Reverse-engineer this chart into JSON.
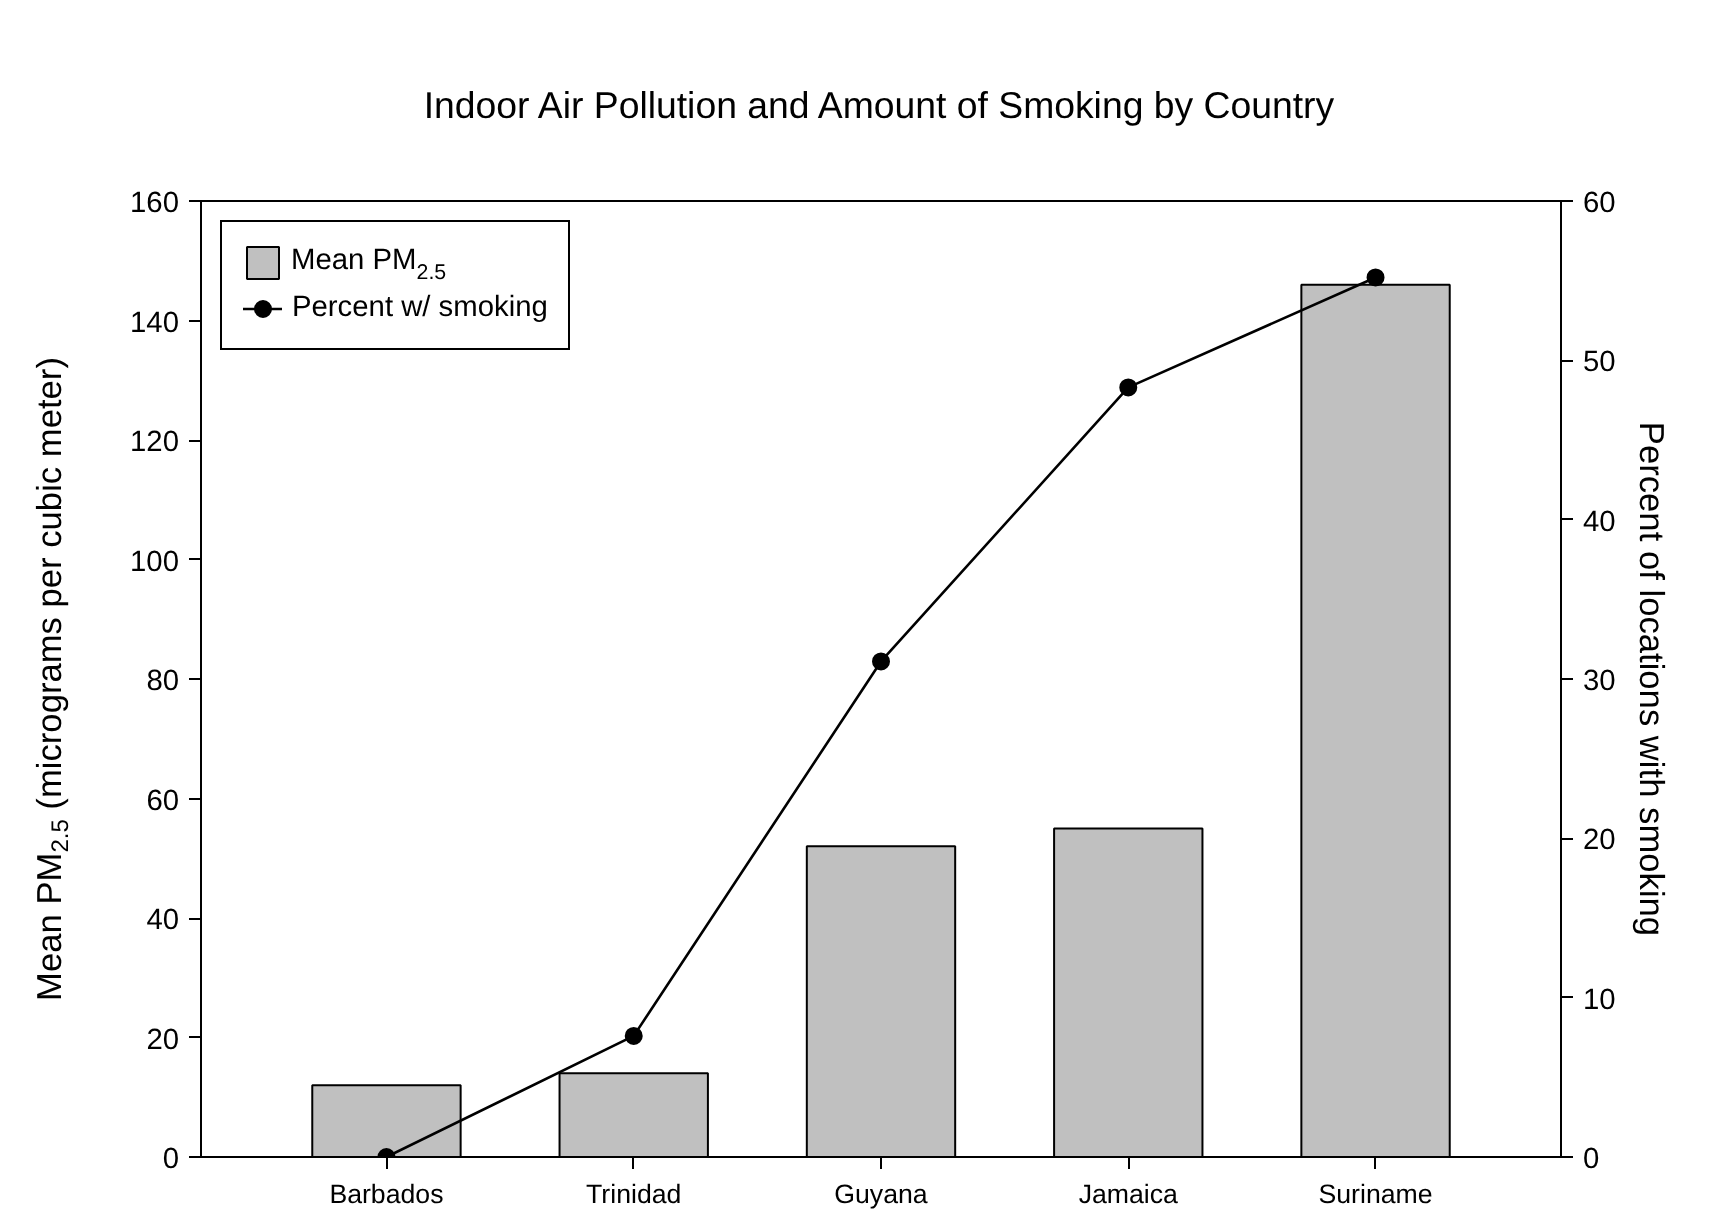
{
  "chart_data": {
    "type": "bar",
    "title": "Indoor Air Pollution and Amount of Smoking by Country",
    "ylabel": "Mean PM$_{2.5}$ (micrograms per cubic meter)",
    "y2label": "Percent of locations with smoking",
    "categories": [
      "Barbados",
      "Trinidad",
      "Guyana",
      "Jamaica",
      "Suriname"
    ],
    "series": [
      {
        "name": "Mean PM$_{2.5}$",
        "color": "#c0c0c0",
        "values": [
          12,
          14,
          52,
          55,
          146
        ]
      },
      {
        "name": "Percent w/ smoking",
        "type": "line",
        "axis": "y2",
        "color": "#000000",
        "marker": "circle",
        "values": [
          0,
          7.6,
          31.1,
          48.3,
          55.2
        ]
      }
    ],
    "ylim": [
      0,
      160
    ],
    "yticks": [
      0,
      20,
      40,
      60,
      80,
      100,
      120,
      140,
      160
    ],
    "y2lim": [
      0,
      60
    ],
    "y2ticks": [
      0,
      10,
      20,
      30,
      40,
      50,
      60
    ],
    "legend": "top left",
    "grid": false
  }
}
